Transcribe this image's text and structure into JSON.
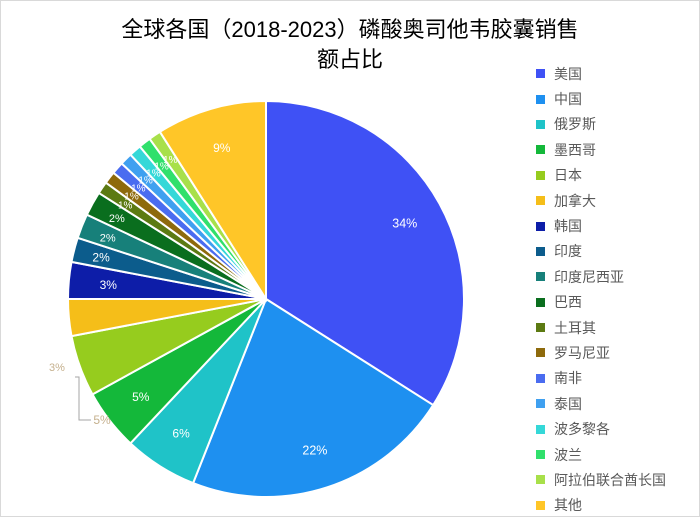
{
  "chart_data": {
    "type": "pie",
    "title": "全球各国（2018-2023）磷酸奥司他韦胶囊销售额占比",
    "title_lines": [
      "全球各国（2018-2023）磷酸奥司他韦胶囊销售",
      "额占比"
    ],
    "legend_position": "right",
    "categories": [
      "美国",
      "中国",
      "俄罗斯",
      "墨西哥",
      "日本",
      "加拿大",
      "韩国",
      "印度",
      "印度尼西亚",
      "巴西",
      "土耳其",
      "罗马尼亚",
      "南非",
      "泰国",
      "波多黎各",
      "波兰",
      "阿拉伯联合酋长国",
      "其他"
    ],
    "values": [
      34,
      22,
      6,
      5,
      5,
      3,
      3,
      2,
      2,
      2,
      1,
      1,
      1,
      1,
      1,
      1,
      1,
      9
    ],
    "labels": [
      "34%",
      "22%",
      "6%",
      "5%",
      "5%",
      "3%",
      "3%",
      "2%",
      "2%",
      "2%",
      "1%",
      "1%",
      "1%",
      "1%",
      "1%",
      "1%",
      "1%",
      "9%"
    ],
    "colors": [
      "#3F51F5",
      "#1E90F0",
      "#1FC3C8",
      "#14B83A",
      "#96CC1E",
      "#F5BE19",
      "#0D1DA8",
      "#0C5C8C",
      "#17807A",
      "#0A6E1E",
      "#5C7A12",
      "#8E6A0C",
      "#4A6CF0",
      "#3FA0F0",
      "#35D8D8",
      "#30E06C",
      "#A8E04A",
      "#FFC628"
    ]
  }
}
